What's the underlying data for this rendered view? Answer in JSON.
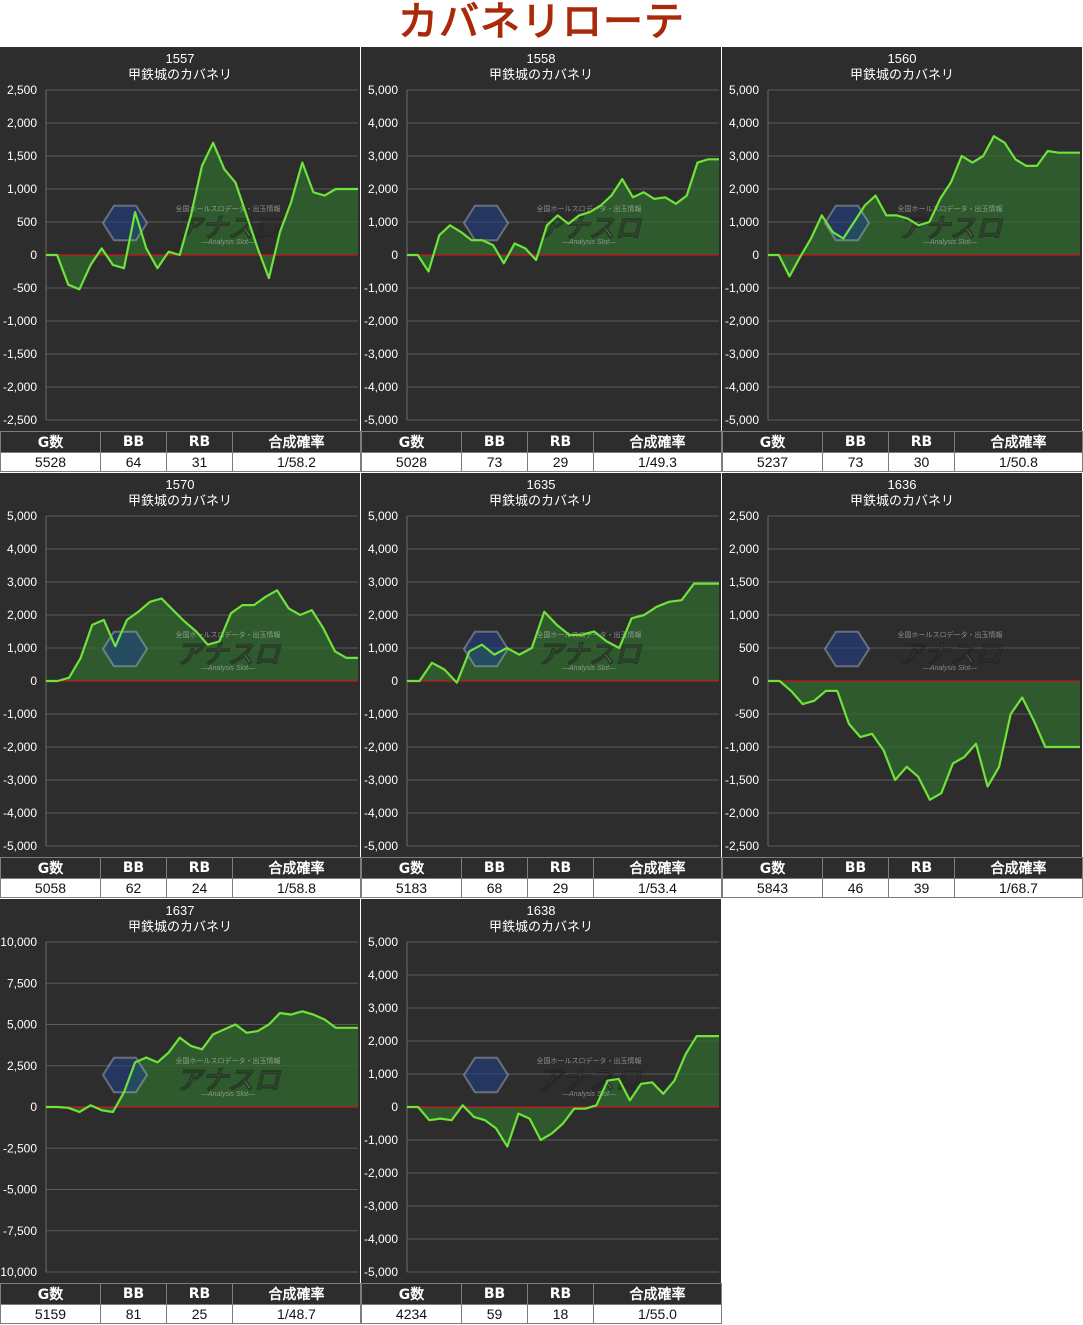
{
  "page": {
    "title": "カバネリローテ"
  },
  "table_headers": [
    "G数",
    "BB",
    "RB",
    "合成確率"
  ],
  "watermark": {
    "top_text": "全国ホールスロデータ・出玉情報",
    "logo_text": "アナスロ",
    "sub_text": "―Analysis Slot―"
  },
  "colors": {
    "background": "#2d2d2d",
    "line": "#6ee33a",
    "fill": "#2f6a2d",
    "zero_line": "#c8161d",
    "grid": "#5a5a5a",
    "title": "#a82a0a"
  },
  "chart_data": [
    {
      "type": "area",
      "machine_no": "1557",
      "machine_name": "甲鉄城のカバネリ",
      "ylim": [
        -2500,
        2500
      ],
      "yticks": [
        "2,500",
        "2,000",
        "1,500",
        "1,000",
        "500",
        "0",
        "-500",
        "-1,000",
        "-1,500",
        "-2,000",
        "-2,500"
      ],
      "values": [
        0,
        0,
        -450,
        -520,
        -150,
        100,
        -150,
        -200,
        650,
        100,
        -200,
        50,
        0,
        600,
        1350,
        1700,
        1300,
        1100,
        600,
        100,
        -350,
        350,
        800,
        1400,
        950,
        900,
        1000,
        1000,
        1000
      ],
      "stats": {
        "games": "5528",
        "bb": "64",
        "rb": "31",
        "prob": "1/58.2"
      }
    },
    {
      "type": "area",
      "machine_no": "1558",
      "machine_name": "甲鉄城のカバネリ",
      "ylim": [
        -5000,
        5000
      ],
      "yticks": [
        "5,000",
        "4,000",
        "3,000",
        "2,000",
        "1,000",
        "0",
        "-1,000",
        "-2,000",
        "-3,000",
        "-4,000",
        "-5,000"
      ],
      "values": [
        0,
        0,
        -500,
        600,
        900,
        700,
        450,
        450,
        300,
        -250,
        350,
        200,
        -150,
        900,
        1200,
        950,
        1200,
        1300,
        1500,
        1800,
        2300,
        1750,
        1900,
        1700,
        1750,
        1550,
        1800,
        2800,
        2900,
        2900
      ],
      "stats": {
        "games": "5028",
        "bb": "73",
        "rb": "29",
        "prob": "1/49.3"
      }
    },
    {
      "type": "area",
      "machine_no": "1560",
      "machine_name": "甲鉄城のカバネリ",
      "ylim": [
        -5000,
        5000
      ],
      "yticks": [
        "5,000",
        "4,000",
        "3,000",
        "2,000",
        "1,000",
        "0",
        "-1,000",
        "-2,000",
        "-3,000",
        "-4,000",
        "-5,000"
      ],
      "values": [
        0,
        0,
        -650,
        -50,
        500,
        1200,
        700,
        500,
        1000,
        1500,
        1800,
        1200,
        1200,
        1100,
        900,
        1000,
        1700,
        2200,
        3000,
        2800,
        3000,
        3600,
        3400,
        2900,
        2700,
        2700,
        3150,
        3100,
        3100,
        3100
      ],
      "stats": {
        "games": "5237",
        "bb": "73",
        "rb": "30",
        "prob": "1/50.8"
      }
    },
    {
      "type": "area",
      "machine_no": "1570",
      "machine_name": "甲鉄城のカバネリ",
      "ylim": [
        -5000,
        5000
      ],
      "yticks": [
        "5,000",
        "4,000",
        "3,000",
        "2,000",
        "1,000",
        "0",
        "-1,000",
        "-2,000",
        "-3,000",
        "-4,000",
        "-5,000"
      ],
      "values": [
        0,
        0,
        100,
        700,
        1700,
        1850,
        1050,
        1850,
        2100,
        2400,
        2500,
        2150,
        1800,
        1500,
        1100,
        1200,
        2050,
        2300,
        2300,
        2550,
        2750,
        2200,
        2000,
        2150,
        1600,
        900,
        700,
        700
      ],
      "stats": {
        "games": "5058",
        "bb": "62",
        "rb": "24",
        "prob": "1/58.8"
      }
    },
    {
      "type": "area",
      "machine_no": "1635",
      "machine_name": "甲鉄城のカバネリ",
      "ylim": [
        -5000,
        5000
      ],
      "yticks": [
        "5,000",
        "4,000",
        "3,000",
        "2,000",
        "1,000",
        "0",
        "-1,000",
        "-2,000",
        "-3,000",
        "-4,000",
        "-5,000"
      ],
      "values": [
        0,
        0,
        550,
        350,
        -50,
        900,
        1100,
        800,
        1000,
        800,
        1000,
        2100,
        1700,
        1400,
        1400,
        1500,
        1200,
        1000,
        1900,
        2000,
        2250,
        2400,
        2450,
        2950,
        2950,
        2950
      ],
      "stats": {
        "games": "5183",
        "bb": "68",
        "rb": "29",
        "prob": "1/53.4"
      }
    },
    {
      "type": "area",
      "machine_no": "1636",
      "machine_name": "甲鉄城のカバネリ",
      "ylim": [
        -2500,
        2500
      ],
      "yticks": [
        "2,500",
        "2,000",
        "1,500",
        "1,000",
        "500",
        "0",
        "-500",
        "-1,000",
        "-1,500",
        "-2,000",
        "-2,500"
      ],
      "values": [
        0,
        0,
        -150,
        -350,
        -300,
        -150,
        -150,
        -650,
        -850,
        -800,
        -1050,
        -1500,
        -1300,
        -1450,
        -1800,
        -1700,
        -1250,
        -1150,
        -950,
        -1600,
        -1300,
        -500,
        -250,
        -600,
        -1000,
        -1000,
        -1000,
        -1000
      ],
      "stats": {
        "games": "5843",
        "bb": "46",
        "rb": "39",
        "prob": "1/68.7"
      }
    },
    {
      "type": "area",
      "machine_no": "1637",
      "machine_name": "甲鉄城のカバネリ",
      "ylim": [
        -10000,
        10000
      ],
      "yticks": [
        "10,000",
        "7,500",
        "5,000",
        "2,500",
        "0",
        "-2,500",
        "-5,000",
        "-7,500",
        "-10,000"
      ],
      "values": [
        0,
        0,
        -50,
        -300,
        100,
        -200,
        -300,
        900,
        2700,
        3000,
        2700,
        3300,
        4200,
        3700,
        3500,
        4400,
        4700,
        5000,
        4500,
        4600,
        5000,
        5700,
        5600,
        5800,
        5600,
        5300,
        4800,
        4800,
        4800
      ],
      "stats": {
        "games": "5159",
        "bb": "81",
        "rb": "25",
        "prob": "1/48.7"
      }
    },
    {
      "type": "area",
      "machine_no": "1638",
      "machine_name": "甲鉄城のカバネリ",
      "ylim": [
        -5000,
        5000
      ],
      "yticks": [
        "5,000",
        "4,000",
        "3,000",
        "2,000",
        "1,000",
        "0",
        "-1,000",
        "-2,000",
        "-3,000",
        "-4,000",
        "-5,000"
      ],
      "values": [
        0,
        0,
        -400,
        -350,
        -400,
        50,
        -300,
        -400,
        -650,
        -1200,
        -200,
        -350,
        -1000,
        -800,
        -500,
        -50,
        -50,
        50,
        800,
        850,
        200,
        700,
        750,
        400,
        800,
        1600,
        2150,
        2150,
        2150
      ],
      "stats": {
        "games": "4234",
        "bb": "59",
        "rb": "18",
        "prob": "1/55.0"
      }
    }
  ]
}
